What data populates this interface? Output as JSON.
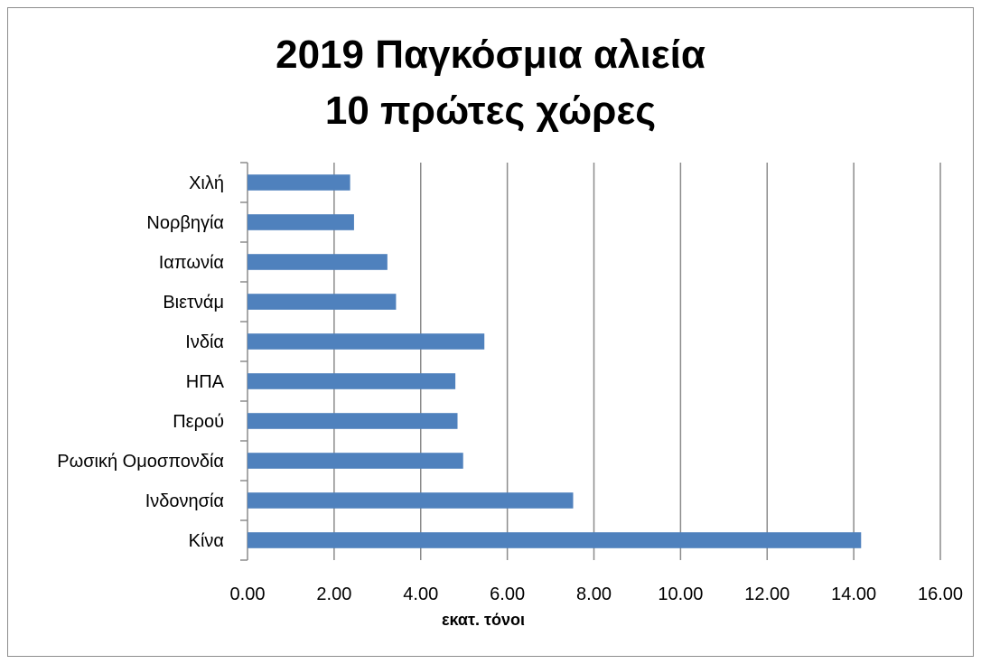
{
  "chart_data": {
    "type": "bar",
    "orientation": "horizontal",
    "title_lines": [
      "2019 Παγκόσμια αλιεία",
      "10 πρώτες χώρες"
    ],
    "xlabel": "εκατ. τόνοι",
    "ylabel": "",
    "categories": [
      "Κίνα",
      "Ινδονησία",
      "Ρωσική Ομοσπονδία",
      "Περού",
      "ΗΠΑ",
      "Ινδία",
      "Βιετνάμ",
      "Ιαπωνία",
      "Νορβηγία",
      "Χιλή"
    ],
    "values": [
      14.17,
      7.52,
      4.98,
      4.85,
      4.8,
      5.47,
      3.43,
      3.23,
      2.46,
      2.37
    ],
    "xlim": [
      0,
      16
    ],
    "xticks": [
      "0.00",
      "2.00",
      "4.00",
      "6.00",
      "8.00",
      "10.00",
      "12.00",
      "14.00",
      "16.00"
    ],
    "grid": "vertical",
    "legend": "none",
    "bar_color": "#4f81bd",
    "grid_color": "#8c8c8c"
  }
}
